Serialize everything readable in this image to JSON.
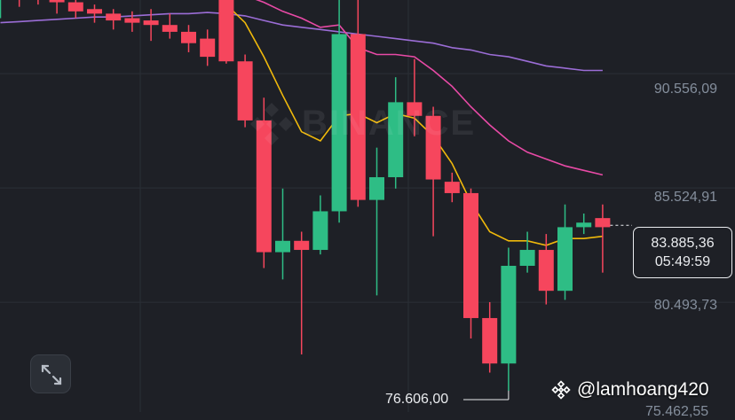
{
  "chart_data": {
    "type": "candlestick",
    "title": "",
    "xlabel": "",
    "ylabel": "",
    "ylim": [
      75664,
      93800
    ],
    "price_axis_labels": [
      "90.556,09",
      "85.524,91",
      "80.493,73",
      "76.606,00"
    ],
    "price_axis_values": [
      90556.09,
      85524.91,
      80493.73,
      76606.0
    ],
    "current_price": "83.885,36",
    "current_price_value": 83885.36,
    "countdown": "05:49:59",
    "low_marker": "76.606,00",
    "low_marker_value": 76606.0,
    "bottom_clipped_label": "75.462,55",
    "colors": {
      "up": "#2ebd85",
      "down": "#f6465d",
      "ma_short": "#f0b90b",
      "ma_mid": "#e84aa6",
      "ma_long": "#9b6dd6",
      "grid": "#2b2f36",
      "background": "#1e2026"
    },
    "candles": [
      {
        "open": 93900,
        "high": 94200,
        "low": 93000,
        "close": 93900
      },
      {
        "open": 93900,
        "high": 94200,
        "low": 93500,
        "close": 93800
      },
      {
        "open": 93900,
        "high": 94000,
        "low": 93600,
        "close": 93800
      },
      {
        "open": 94000,
        "high": 94200,
        "low": 93200,
        "close": 93700
      },
      {
        "open": 93700,
        "high": 94000,
        "low": 93000,
        "close": 93300
      },
      {
        "open": 93400,
        "high": 93600,
        "low": 92800,
        "close": 93200
      },
      {
        "open": 93200,
        "high": 93400,
        "low": 92500,
        "close": 92900
      },
      {
        "open": 93000,
        "high": 93300,
        "low": 92400,
        "close": 92800
      },
      {
        "open": 92900,
        "high": 93400,
        "low": 92000,
        "close": 92700
      },
      {
        "open": 92700,
        "high": 93200,
        "low": 92100,
        "close": 92400
      },
      {
        "open": 92400,
        "high": 92700,
        "low": 91500,
        "close": 91900
      },
      {
        "open": 92100,
        "high": 92500,
        "low": 90900,
        "close": 91300
      },
      {
        "open": 94000,
        "high": 94500,
        "low": 91000,
        "close": 91100
      },
      {
        "open": 91100,
        "high": 91400,
        "low": 88200,
        "close": 88500
      },
      {
        "open": 88500,
        "high": 89500,
        "low": 82000,
        "close": 82700
      },
      {
        "open": 82700,
        "high": 85500,
        "low": 81500,
        "close": 83200
      },
      {
        "open": 83200,
        "high": 83600,
        "low": 78200,
        "close": 82800
      },
      {
        "open": 82800,
        "high": 85200,
        "low": 82600,
        "close": 84500
      },
      {
        "open": 84500,
        "high": 93800,
        "low": 84000,
        "close": 92300
      },
      {
        "open": 92300,
        "high": 93800,
        "low": 84700,
        "close": 85000
      },
      {
        "open": 85000,
        "high": 87300,
        "low": 80800,
        "close": 86000
      },
      {
        "open": 86000,
        "high": 90400,
        "low": 85500,
        "close": 89300
      },
      {
        "open": 89300,
        "high": 91200,
        "low": 87800,
        "close": 88700
      },
      {
        "open": 88700,
        "high": 89100,
        "low": 83400,
        "close": 85900
      },
      {
        "open": 85800,
        "high": 86200,
        "low": 84900,
        "close": 85300
      },
      {
        "open": 85300,
        "high": 85500,
        "low": 78900,
        "close": 79800
      },
      {
        "open": 79800,
        "high": 80500,
        "low": 77400,
        "close": 77800
      },
      {
        "open": 77800,
        "high": 82900,
        "low": 76600,
        "close": 82100
      },
      {
        "open": 82100,
        "high": 83600,
        "low": 81800,
        "close": 82800
      },
      {
        "open": 82800,
        "high": 83500,
        "low": 80400,
        "close": 81000
      },
      {
        "open": 81000,
        "high": 84800,
        "low": 80600,
        "close": 83800
      },
      {
        "open": 83800,
        "high": 84400,
        "low": 83500,
        "close": 84000
      },
      {
        "open": 84200,
        "high": 84800,
        "low": 81800,
        "close": 83800
      }
    ],
    "ma_short": [
      null,
      null,
      null,
      null,
      null,
      null,
      null,
      null,
      null,
      null,
      null,
      null,
      93600,
      92800,
      91300,
      89600,
      88000,
      87600,
      88700,
      88800,
      88400,
      88800,
      88600,
      87800,
      86600,
      84900,
      83600,
      83200,
      83200,
      83000,
      83300,
      83300,
      83400
    ],
    "ma_mid": [
      null,
      null,
      null,
      null,
      null,
      null,
      null,
      null,
      null,
      null,
      null,
      null,
      null,
      94000,
      93700,
      93300,
      93000,
      92600,
      92700,
      91700,
      91400,
      91400,
      91300,
      90700,
      90000,
      89100,
      88300,
      87600,
      87100,
      86800,
      86500,
      86300,
      86100
    ],
    "ma_long": [
      92800,
      92850,
      92900,
      92950,
      93000,
      93050,
      93050,
      93100,
      93150,
      93200,
      93200,
      93250,
      93200,
      93100,
      92900,
      92700,
      92600,
      92500,
      92400,
      92300,
      92200,
      92100,
      92000,
      91900,
      91700,
      91600,
      91400,
      91300,
      91100,
      90900,
      90800,
      90700,
      90700
    ]
  },
  "watermark": "BINANCE",
  "user_tag": "@lamhoang420",
  "icons": {
    "expand": "expand-icon",
    "logo": "binance-logo-icon"
  }
}
